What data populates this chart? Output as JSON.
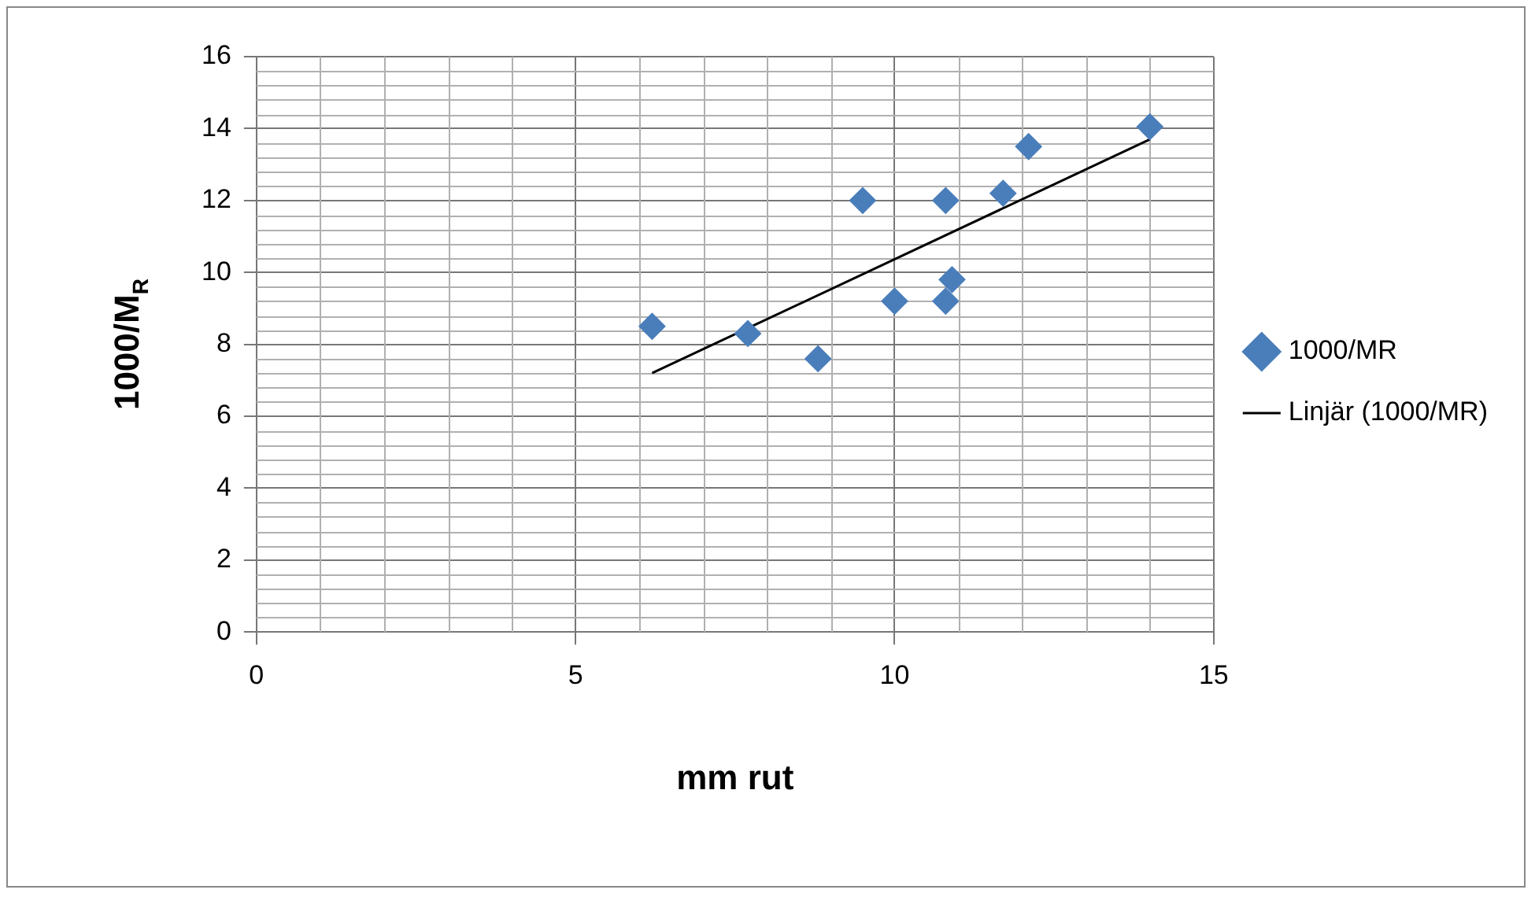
{
  "chart_data": {
    "type": "scatter",
    "xlabel": "mm rut",
    "ylabel": "1000/M$_{R}$",
    "xlim": [
      0,
      15
    ],
    "xticks": [
      0,
      5,
      10,
      15
    ],
    "ylim": [
      0,
      16
    ],
    "yticks": [
      0,
      2,
      4,
      6,
      8,
      10,
      12,
      14,
      16
    ],
    "grid": true,
    "legend": "right",
    "series": [
      {
        "name": "1000/MR",
        "marker": "diamond",
        "color": "#4a7ebb",
        "x": [
          6.2,
          7.7,
          8.8,
          9.5,
          10,
          10.8,
          10.8,
          10.9,
          11.7,
          12.1,
          14
        ],
        "values": [
          8.5,
          8.3,
          7.6,
          12,
          9.2,
          12,
          9.2,
          9.8,
          12.2,
          13.5,
          14.05
        ]
      },
      {
        "name": "Linjär (1000/MR)",
        "type": "line",
        "marker": "none",
        "color": "#000000",
        "x": [
          6.2,
          14
        ],
        "values": [
          7.2,
          13.7
        ]
      }
    ]
  }
}
